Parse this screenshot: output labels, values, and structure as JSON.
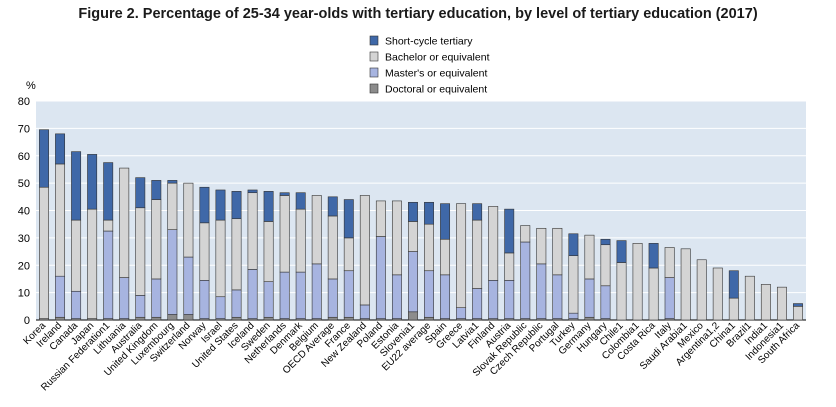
{
  "title": "Figure 2. Percentage of 25-34 year-olds with tertiary education, by level of tertiary education (2017)",
  "colors": {
    "plot_bg": "#dce6f1",
    "grid": "#ffffff",
    "short_cycle": "#3f68a8",
    "bachelor": "#d4d4d4",
    "masters": "#a7b4e0",
    "doctoral": "#8c8c8c",
    "bar_edge": "#333333"
  },
  "chart_data": {
    "type": "bar",
    "stacked": true,
    "title": "Figure 2. Percentage of 25-34 year-olds with tertiary education, by level of tertiary education (2017)",
    "ylabel": "%",
    "xlabel": "",
    "ylim": [
      0,
      80
    ],
    "yticks": [
      0,
      10,
      20,
      30,
      40,
      50,
      60,
      70,
      80
    ],
    "grid": true,
    "legend_position": "top-center",
    "categories": [
      "Korea",
      "Ireland",
      "Canada",
      "Japan",
      "Russian Federation1",
      "Lithuania",
      "Australia",
      "United Kingdom",
      "Luxembourg",
      "Switzerland",
      "Norway",
      "Israel",
      "United States",
      "Iceland",
      "Sweden",
      "Netherlands",
      "Denmark",
      "Belgium",
      "OECD Average",
      "France",
      "New Zealand",
      "Poland",
      "Estonia",
      "Slovenia1",
      "EU22 average",
      "Spain",
      "Greece",
      "Latvia1",
      "Finland",
      "Austria",
      "Slovak Republic",
      "Czech Republic",
      "Portugal",
      "Turkey",
      "Germany",
      "Hungary",
      "Chile1",
      "Colombia1",
      "Costa Rica",
      "Italy",
      "Saudi Arabia1",
      "Mexico",
      "Argentina1,2",
      "China1",
      "Brazil1",
      "India1",
      "Indonesia1",
      "South Africa"
    ],
    "series": [
      {
        "name": "Doctoral or equivalent",
        "values": [
          0.5,
          1,
          0.5,
          0.5,
          0.5,
          0.5,
          1,
          1,
          2,
          2,
          0.5,
          0.5,
          1,
          0.5,
          1,
          0.5,
          0.5,
          0.5,
          1,
          1,
          0.5,
          0.5,
          0.5,
          3,
          1,
          0.5,
          0.5,
          0.5,
          0.5,
          0.5,
          0.5,
          0.5,
          0.5,
          0.5,
          1,
          0.5,
          0,
          0,
          0,
          0.5,
          0,
          0,
          0,
          0,
          0,
          0,
          0,
          0
        ]
      },
      {
        "name": "Master's or equivalent",
        "values": [
          0,
          15,
          10,
          0,
          32,
          15,
          8,
          14,
          31,
          21,
          14,
          8,
          10,
          18,
          13,
          17,
          17,
          20,
          14,
          17,
          5,
          30,
          16,
          22,
          17,
          16,
          4,
          11,
          14,
          14,
          28,
          20,
          16,
          2,
          14,
          12,
          0,
          0,
          0,
          15,
          0,
          0,
          0,
          0,
          0,
          0,
          0,
          0
        ]
      },
      {
        "name": "Bachelor or equivalent",
        "values": [
          48,
          41,
          26,
          40,
          4,
          40,
          32,
          29,
          17,
          27,
          21,
          28,
          26,
          28,
          22,
          28,
          23,
          25,
          23,
          12,
          40,
          13,
          27,
          11,
          17,
          13,
          38,
          25,
          27,
          10,
          6,
          13,
          17,
          21,
          16,
          15,
          21,
          28,
          19,
          11,
          26,
          22,
          19,
          8,
          16,
          13,
          12,
          5
        ]
      },
      {
        "name": "Short-cycle tertiary",
        "values": [
          21,
          11,
          25,
          20,
          21,
          0,
          11,
          7,
          1,
          0,
          13,
          11,
          10,
          1,
          11,
          1,
          6,
          0,
          7,
          14,
          0,
          0,
          0,
          7,
          8,
          13,
          0,
          6,
          0,
          16,
          0,
          0,
          0,
          8,
          0,
          2,
          8,
          0,
          9,
          0,
          0,
          0,
          0,
          10,
          0,
          0,
          0,
          1
        ]
      }
    ]
  }
}
